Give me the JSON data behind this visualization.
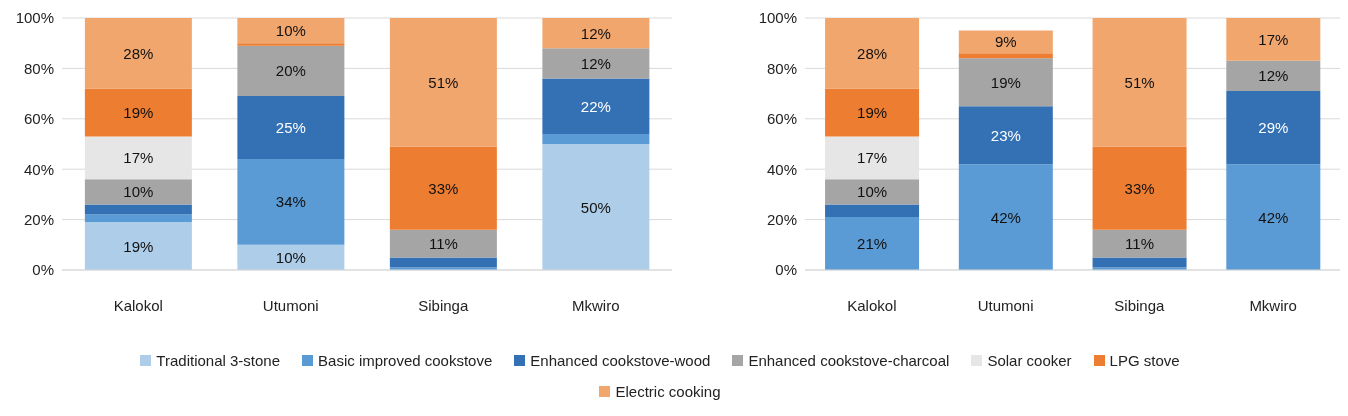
{
  "chart_data": [
    {
      "type": "bar",
      "stacked": true,
      "categories": [
        "Kalokol",
        "Utumoni",
        "Sibinga",
        "Mkwiro"
      ],
      "ylim": [
        0,
        100
      ],
      "yticks": [
        {
          "value": 0,
          "label": "0%"
        },
        {
          "value": 20,
          "label": "20%"
        },
        {
          "value": 40,
          "label": "40%"
        },
        {
          "value": 60,
          "label": "60%"
        },
        {
          "value": 80,
          "label": "80%"
        },
        {
          "value": 100,
          "label": "100%"
        }
      ],
      "grid": "y",
      "legend": "bottom",
      "series": [
        {
          "name": "Traditional 3-stone",
          "color": "#aecde9",
          "values": [
            19,
            10,
            0,
            50
          ],
          "value_labels": [
            "19%",
            "10%",
            null,
            "50%"
          ]
        },
        {
          "name": "Basic improved cookstove",
          "color": "#5b9bd5",
          "values": [
            3,
            34,
            1,
            4
          ],
          "value_labels": [
            null,
            "34%",
            null,
            null
          ]
        },
        {
          "name": "Enhanced cookstove-wood",
          "color": "#3370b4",
          "values": [
            4,
            25,
            4,
            22
          ],
          "value_labels": [
            null,
            "25%",
            null,
            "22%"
          ]
        },
        {
          "name": "Enhanced cookstove-charcoal",
          "color": "#a5a5a5",
          "values": [
            10,
            20,
            11,
            12
          ],
          "value_labels": [
            "10%",
            "20%",
            "11%",
            "12%"
          ]
        },
        {
          "name": "Solar cooker",
          "color": "#e7e6e6",
          "values": [
            17,
            0,
            0,
            0
          ],
          "value_labels": [
            "17%",
            null,
            null,
            null
          ]
        },
        {
          "name": "LPG stove",
          "color": "#ed7d31",
          "values": [
            19,
            1,
            33,
            0
          ],
          "value_labels": [
            "19%",
            null,
            "33%",
            null
          ]
        },
        {
          "name": "Electric cooking",
          "color": "#f1a66e",
          "values": [
            28,
            10,
            51,
            12
          ],
          "value_labels": [
            "28%",
            "10%",
            "51%",
            "12%"
          ]
        }
      ]
    },
    {
      "type": "bar",
      "stacked": true,
      "categories": [
        "Kalokol",
        "Utumoni",
        "Sibinga",
        "Mkwiro"
      ],
      "ylim": [
        0,
        100
      ],
      "yticks": [
        {
          "value": 0,
          "label": "0%"
        },
        {
          "value": 20,
          "label": "20%"
        },
        {
          "value": 40,
          "label": "40%"
        },
        {
          "value": 60,
          "label": "60%"
        },
        {
          "value": 80,
          "label": "80%"
        },
        {
          "value": 100,
          "label": "100%"
        }
      ],
      "grid": "y",
      "legend": "bottom",
      "series": [
        {
          "name": "Traditional 3-stone",
          "color": "#aecde9",
          "values": [
            0,
            0,
            0,
            0
          ],
          "value_labels": [
            null,
            null,
            null,
            null
          ]
        },
        {
          "name": "Basic improved cookstove",
          "color": "#5b9bd5",
          "values": [
            21,
            42,
            1,
            42
          ],
          "value_labels": [
            "21%",
            "42%",
            null,
            "42%"
          ]
        },
        {
          "name": "Enhanced cookstove-wood",
          "color": "#3370b4",
          "values": [
            5,
            23,
            4,
            29
          ],
          "value_labels": [
            null,
            "23%",
            null,
            "29%"
          ]
        },
        {
          "name": "Enhanced cookstove-charcoal",
          "color": "#a5a5a5",
          "values": [
            10,
            19,
            11,
            12
          ],
          "value_labels": [
            "10%",
            "19%",
            "11%",
            "12%"
          ]
        },
        {
          "name": "Solar cooker",
          "color": "#e7e6e6",
          "values": [
            17,
            0,
            0,
            0
          ],
          "value_labels": [
            "17%",
            null,
            null,
            null
          ]
        },
        {
          "name": "LPG stove",
          "color": "#ed7d31",
          "values": [
            19,
            2,
            33,
            0
          ],
          "value_labels": [
            "19%",
            null,
            "33%",
            null
          ]
        },
        {
          "name": "Electric cooking",
          "color": "#f1a66e",
          "values": [
            28,
            9,
            51,
            17
          ],
          "value_labels": [
            "28%",
            "9%",
            "51%",
            "17%"
          ]
        }
      ]
    }
  ]
}
